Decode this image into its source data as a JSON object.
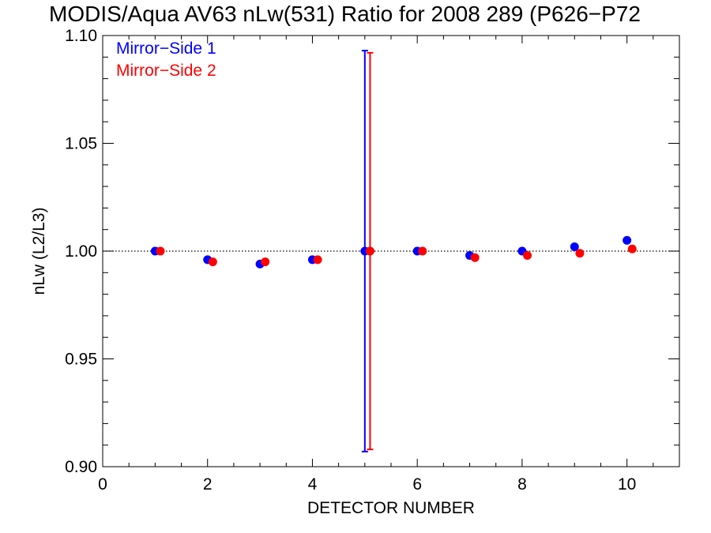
{
  "chart_data": {
    "type": "scatter",
    "title": "MODIS/Aqua AV63 nLw(531) Ratio for 2008 289 (P626−P72",
    "xlabel": "DETECTOR NUMBER",
    "ylabel": "nLw (L2/L3)",
    "xlim": [
      0,
      11
    ],
    "ylim": [
      0.9,
      1.1
    ],
    "x_ticks": [
      "0",
      "2",
      "4",
      "6",
      "8",
      "10"
    ],
    "y_ticks": [
      "0.90",
      "0.95",
      "1.00",
      "1.05",
      "1.10"
    ],
    "reference_line": 1.0,
    "legend_position": "top-left",
    "series": [
      {
        "name": "Mirror−Side 1",
        "color": "#0000ff",
        "x": [
          1,
          2,
          3,
          4,
          5,
          6,
          7,
          8,
          9,
          10
        ],
        "y": [
          1.0,
          0.996,
          0.994,
          0.996,
          1.0,
          1.0,
          0.998,
          1.0,
          1.002,
          1.005
        ],
        "error_bar": {
          "x": 5,
          "low": 0.907,
          "high": 1.093
        }
      },
      {
        "name": "Mirror−Side 2",
        "color": "#ff0000",
        "x": [
          1.1,
          2.1,
          3.1,
          4.1,
          5.1,
          6.1,
          7.1,
          8.1,
          9.1,
          10.1
        ],
        "y": [
          1.0,
          0.995,
          0.995,
          0.996,
          1.0,
          1.0,
          0.997,
          0.998,
          0.999,
          1.001
        ],
        "error_bar": {
          "x": 5.1,
          "low": 0.908,
          "high": 1.092
        }
      }
    ]
  }
}
